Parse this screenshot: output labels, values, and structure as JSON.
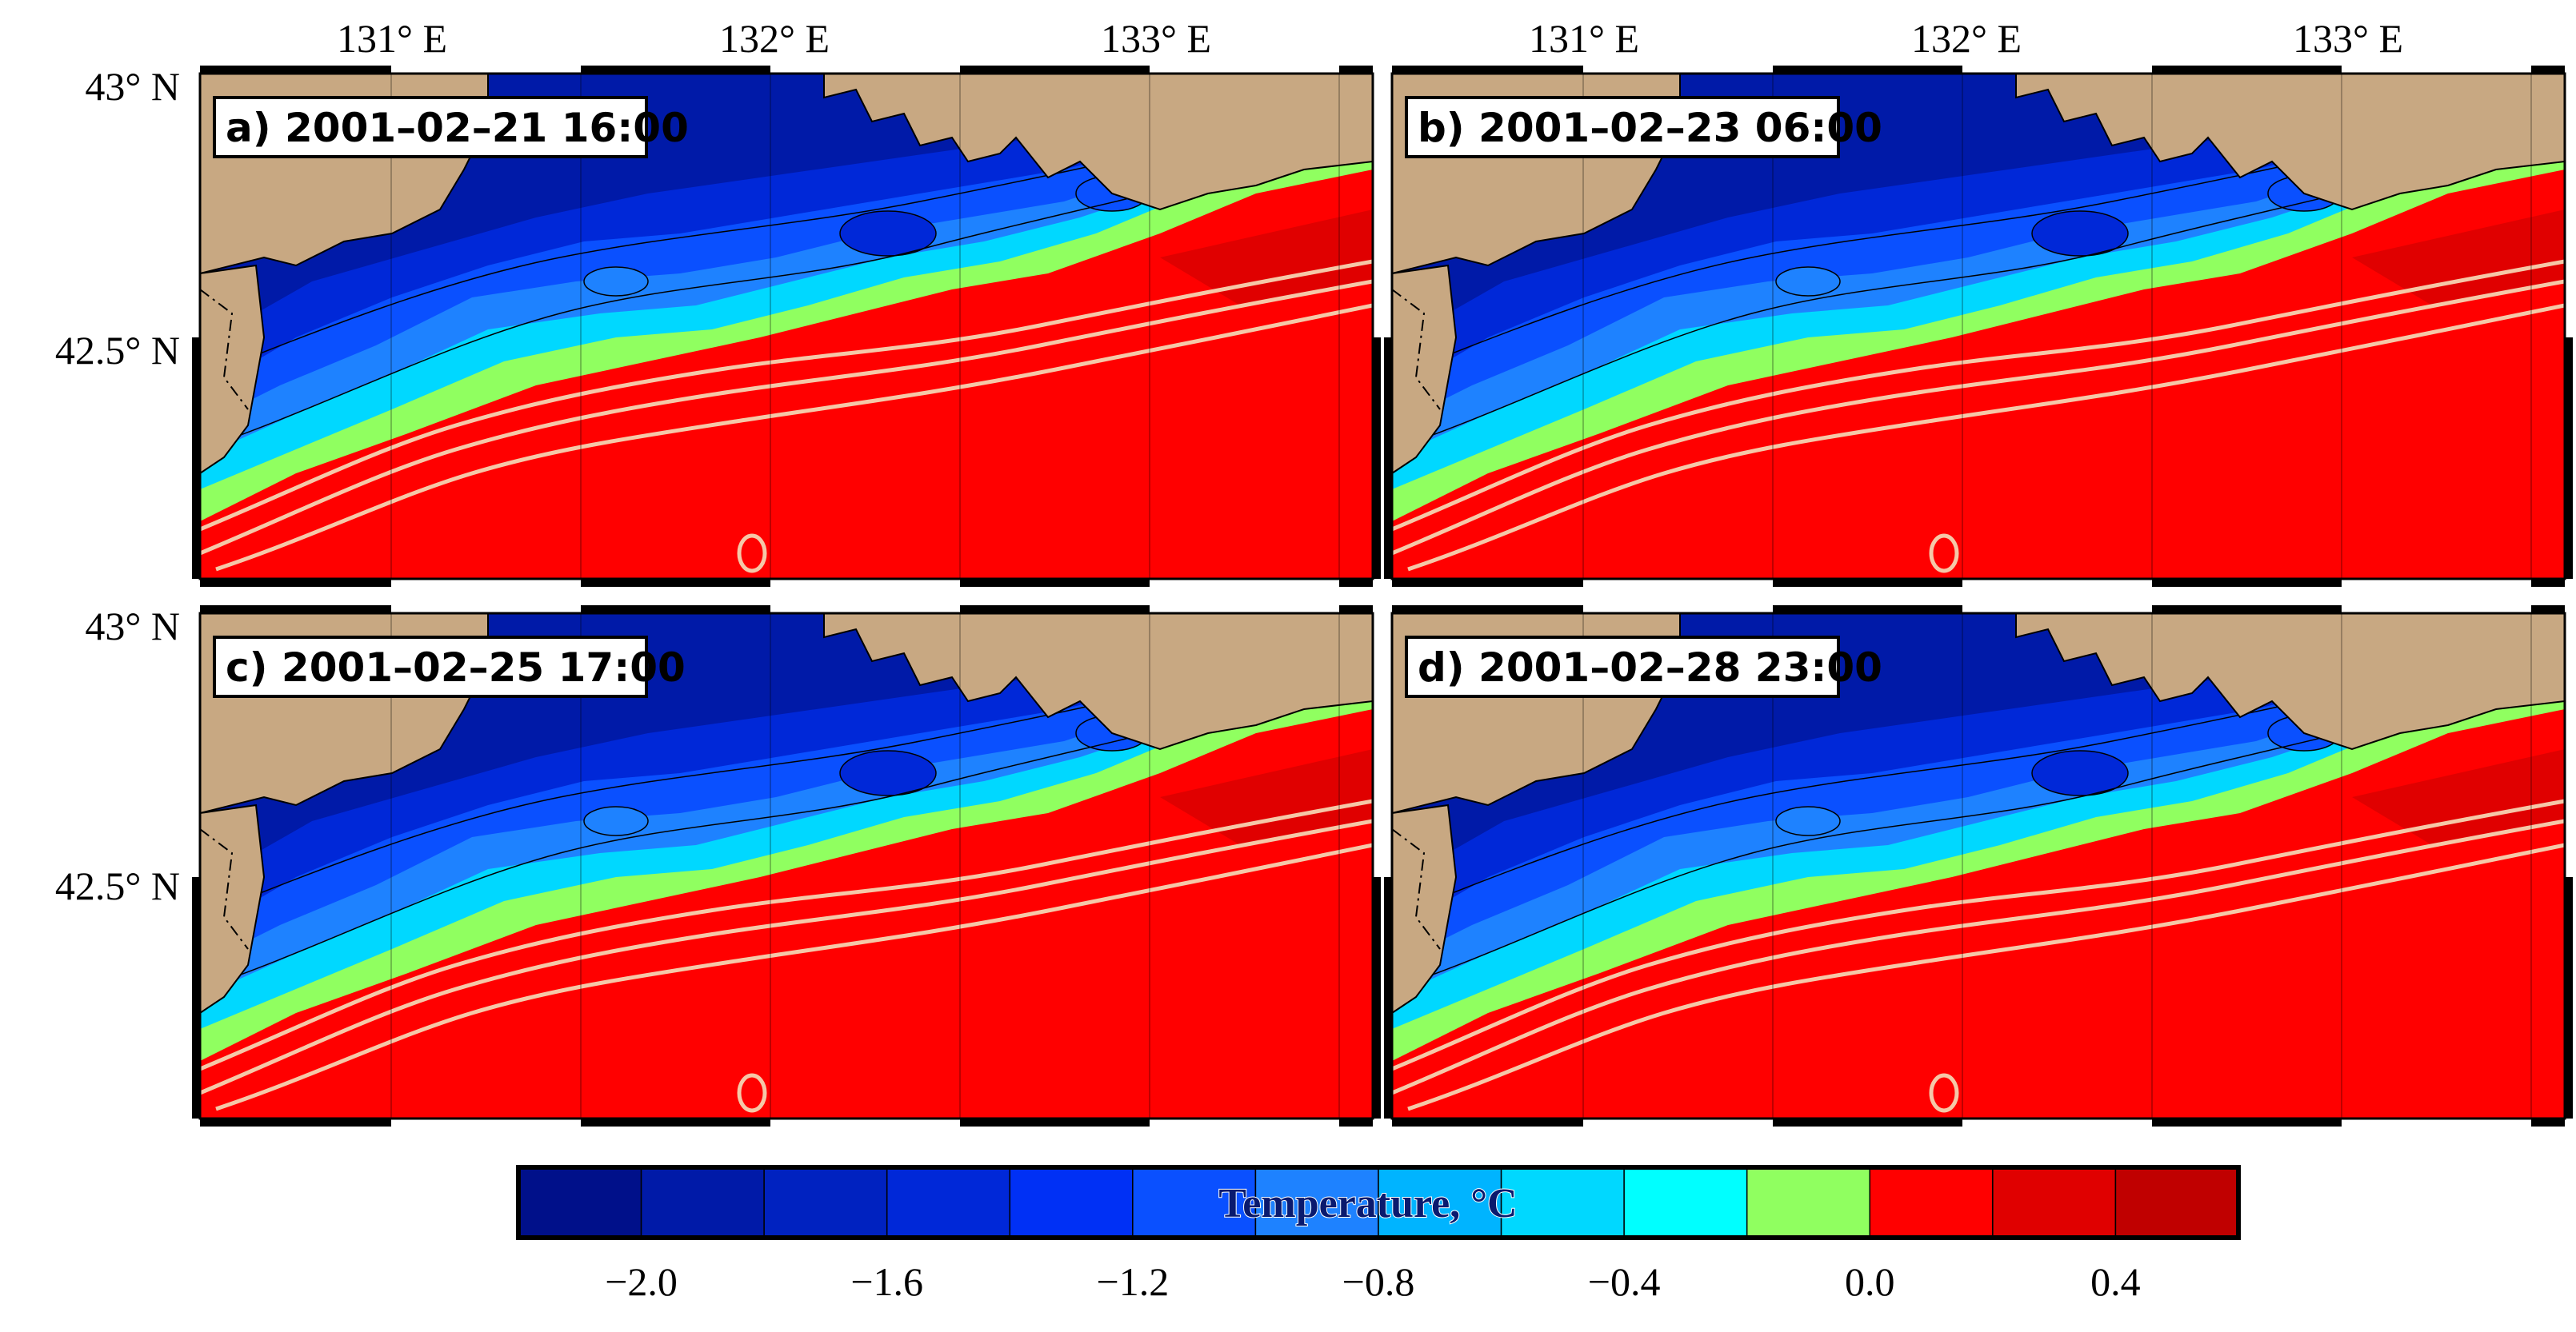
{
  "longitude_labels": [
    "131° E",
    "132° E",
    "133° E"
  ],
  "latitude_labels": [
    "43° N",
    "42.5° N"
  ],
  "panels": [
    {
      "id": "a",
      "label": "a) 2001–02–21 16:00"
    },
    {
      "id": "b",
      "label": "b) 2001–02–23 06:00"
    },
    {
      "id": "c",
      "label": "c) 2001–02–25 17:00"
    },
    {
      "id": "d",
      "label": "d) 2001–02–28 23:00"
    }
  ],
  "colorbar": {
    "title": "Temperature, °C",
    "tick_labels": [
      "−2.0",
      "−1.6",
      "−1.2",
      "−0.8",
      "−0.4",
      "0.0",
      "0.4"
    ],
    "levels": [
      -2.2,
      -2.0,
      -1.8,
      -1.6,
      -1.4,
      -1.2,
      -1.0,
      -0.8,
      -0.6,
      -0.4,
      -0.2,
      0.0,
      0.2,
      0.4,
      0.6
    ],
    "colors": [
      "#00108a",
      "#001aa8",
      "#0022c0",
      "#0028d8",
      "#0030f5",
      "#0a50ff",
      "#1e82ff",
      "#00b4ff",
      "#00d8ff",
      "#00ffff",
      "#90ff60",
      "#ff0000",
      "#e00000",
      "#c00000",
      "#a00000"
    ]
  },
  "colors": {
    "land": "#c8a882",
    "warm_water": "#ff0000",
    "isobath": "#f5c8a8",
    "frame": "#000000"
  }
}
